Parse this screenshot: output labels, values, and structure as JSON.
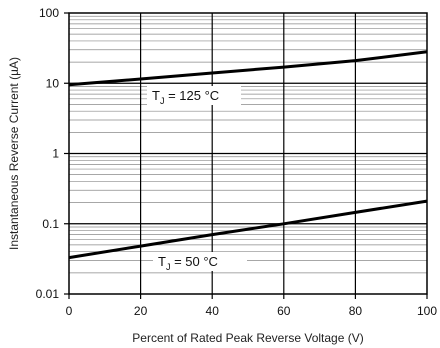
{
  "chart_data": {
    "type": "line",
    "title": "",
    "xlabel": "Percent of Rated Peak Reverse Voltage (V)",
    "ylabel": "Instantaneous Reverse Current (µA)",
    "xlim": [
      0,
      100
    ],
    "ylim": [
      0.01,
      100
    ],
    "yscale": "log",
    "grid": true,
    "x_ticks": [
      "0",
      "20",
      "40",
      "60",
      "80",
      "100"
    ],
    "y_ticks": [
      "0.01",
      "0.1",
      "1",
      "10",
      "100"
    ],
    "series": [
      {
        "name": "TJ = 125 °C",
        "label_text": {
          "main": "T",
          "sub": "J",
          "rest": " = 125 °C"
        },
        "x": [
          0,
          20,
          40,
          60,
          80,
          100
        ],
        "y": [
          9.5,
          11.5,
          14,
          17,
          21,
          28
        ]
      },
      {
        "name": "TJ = 50 °C",
        "label_text": {
          "main": "T",
          "sub": "J",
          "rest": " = 50 °C"
        },
        "x": [
          0,
          20,
          40,
          60,
          80,
          100
        ],
        "y": [
          0.033,
          0.048,
          0.07,
          0.1,
          0.145,
          0.21
        ]
      }
    ]
  }
}
